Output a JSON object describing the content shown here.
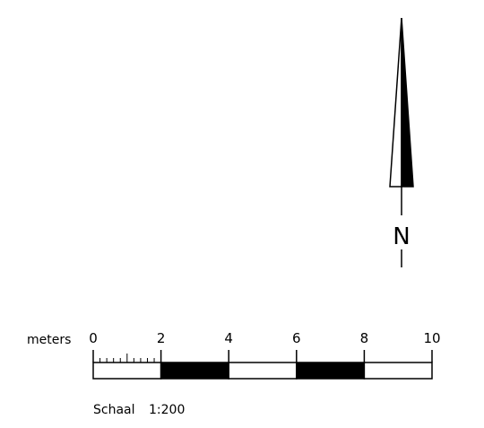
{
  "north_arrow": {
    "label": "N"
  },
  "scale_bar": {
    "unit_label": "meters",
    "ticks": [
      "0",
      "2",
      "4",
      "6",
      "8",
      "10"
    ],
    "segments": [
      {
        "from": 0,
        "to": 2,
        "fill": "white"
      },
      {
        "from": 2,
        "to": 4,
        "fill": "black"
      },
      {
        "from": 4,
        "to": 6,
        "fill": "white"
      },
      {
        "from": 6,
        "to": 8,
        "fill": "black"
      },
      {
        "from": 8,
        "to": 10,
        "fill": "white"
      }
    ],
    "minor_subdivisions": 10,
    "scale_word": "Schaal",
    "scale_ratio": "1:200"
  },
  "colors": {
    "ink": "#000000",
    "paper": "#ffffff"
  }
}
